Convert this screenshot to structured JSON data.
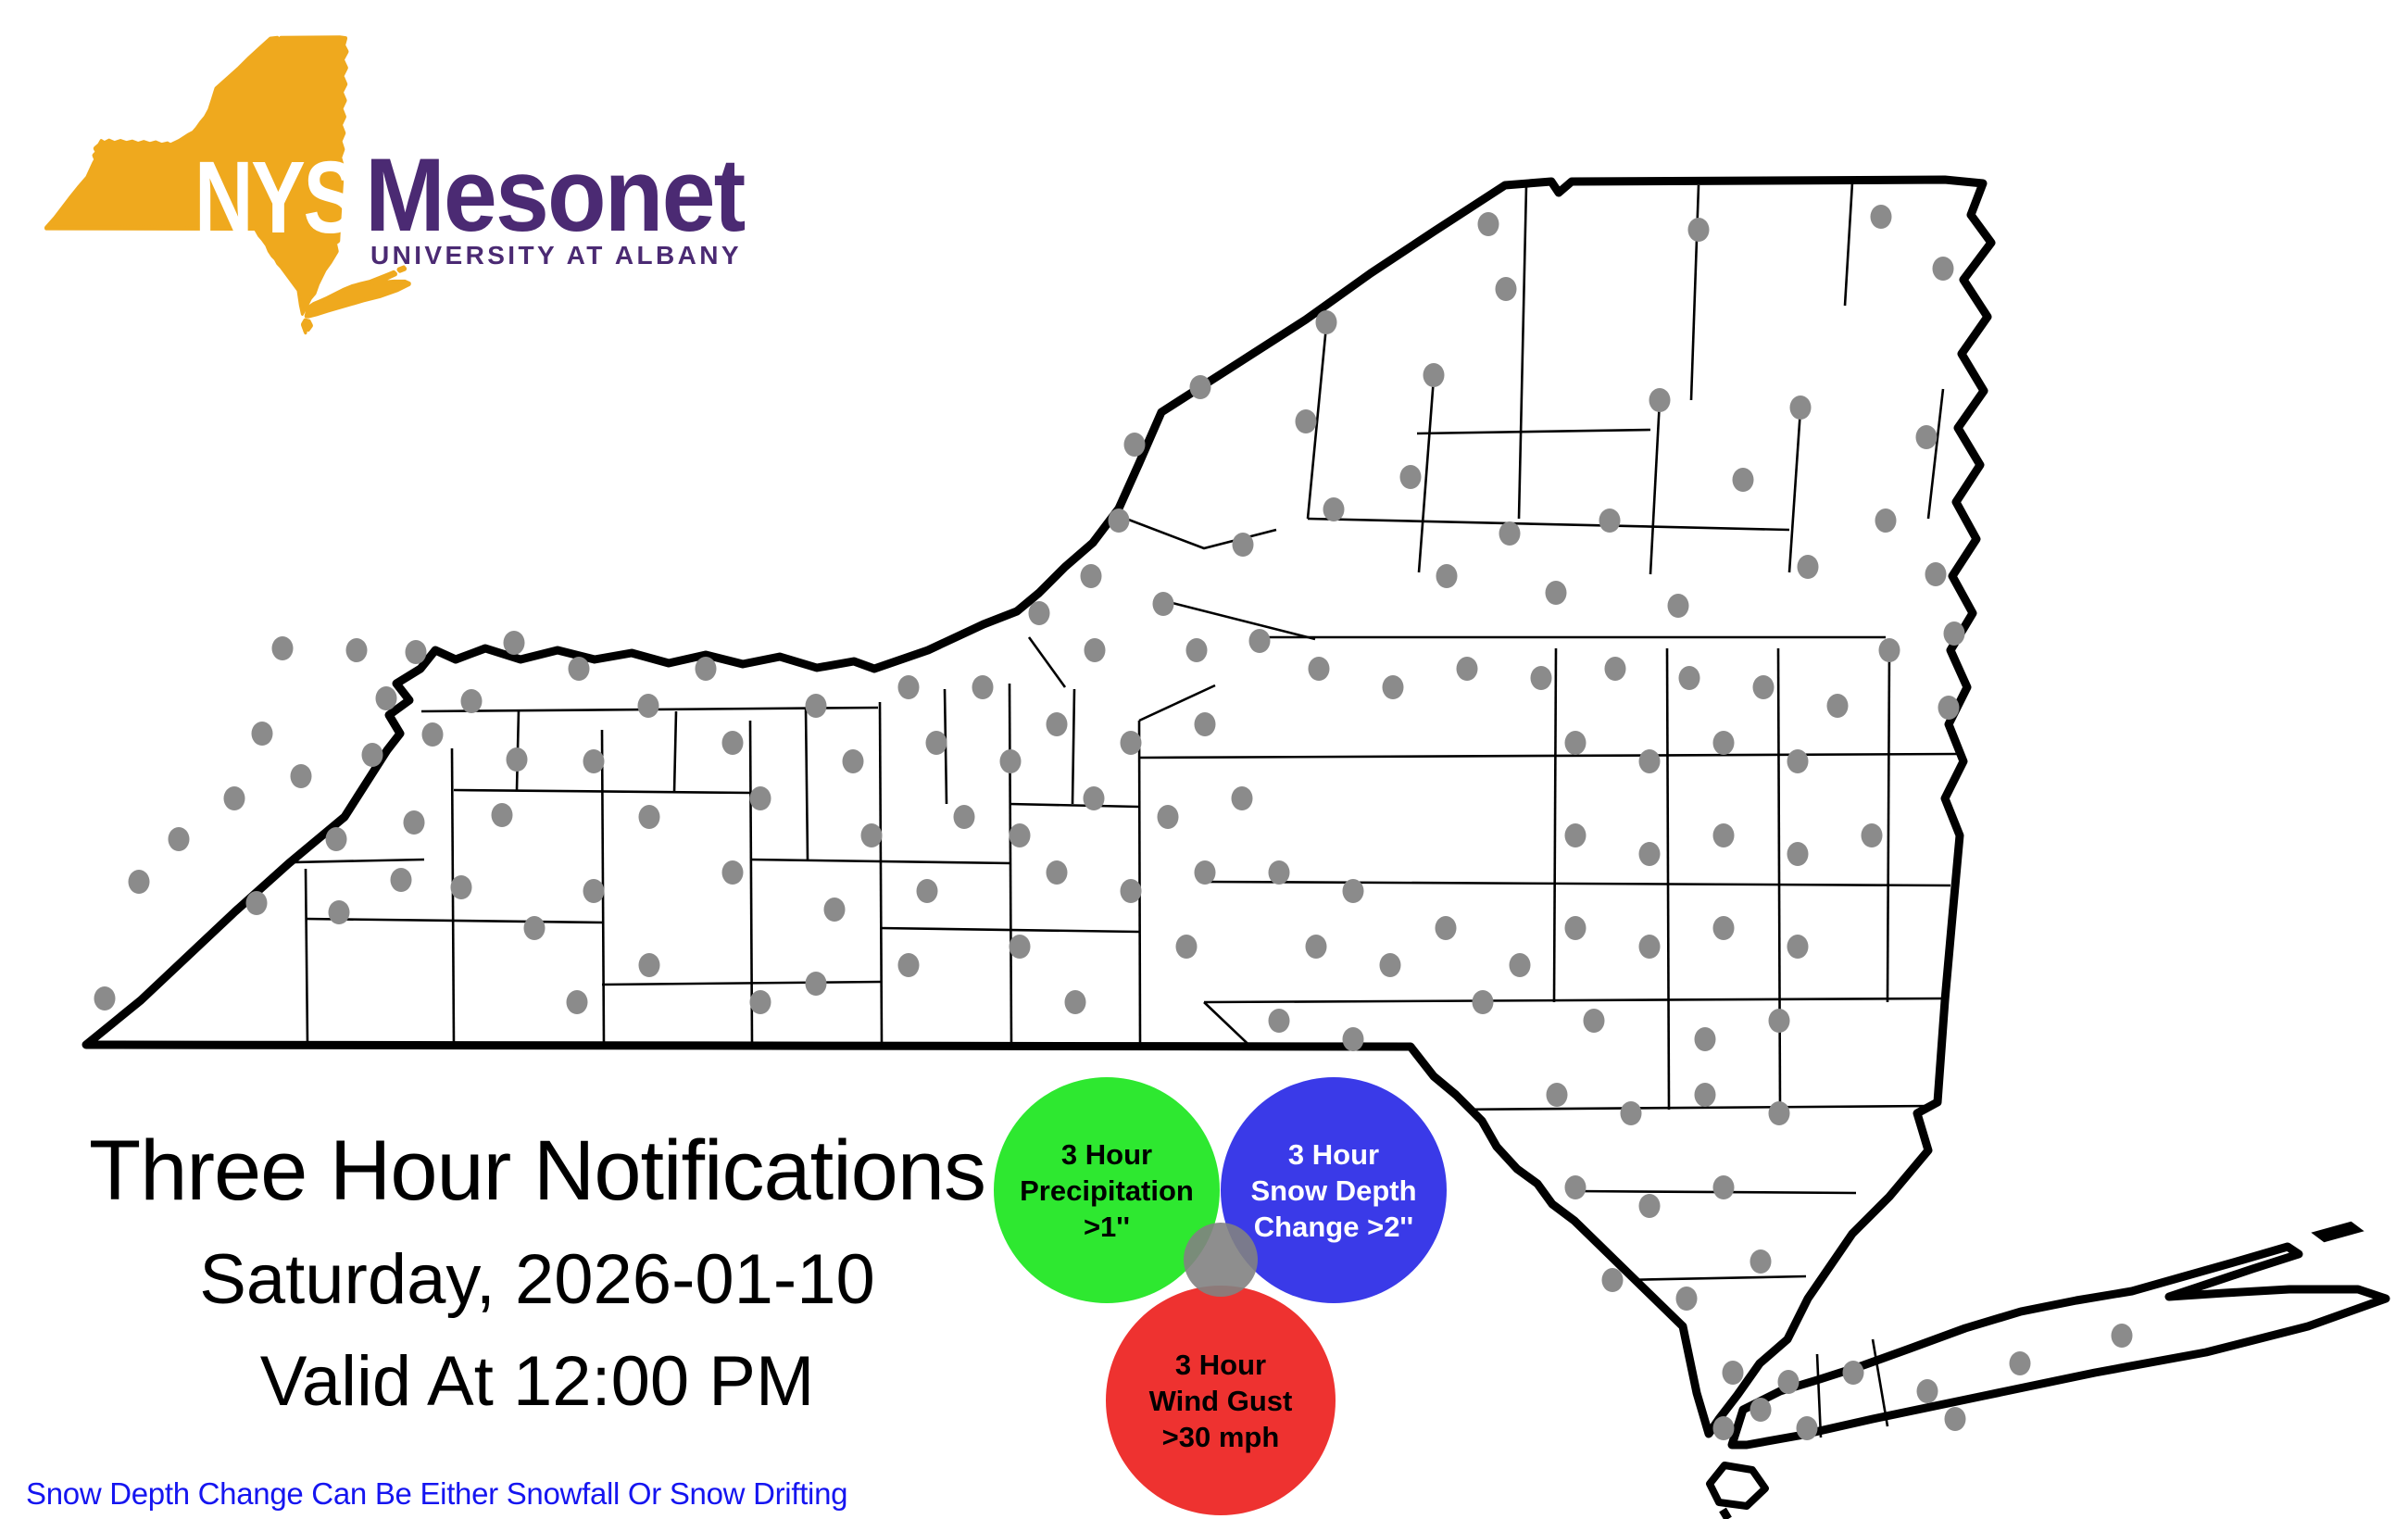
{
  "logo": {
    "nys": "NYS",
    "mesonet": "Mesonet",
    "university": "UNIVERSITY AT ALBANY",
    "state_color": "#efa91e",
    "purple": "#4b2a73"
  },
  "title": {
    "line1": "Three Hour Notifications",
    "line2": "Saturday, 2026-01-10",
    "line3": "Valid At 12:00 PM"
  },
  "footnote": {
    "text": "Snow Depth Change Can Be Either Snowfall Or Snow Drifting",
    "color": "#1515f0"
  },
  "legend": {
    "precipitation": {
      "line1": "3 Hour",
      "line2": "Precipitation",
      "line3": ">1''",
      "color": "#2ee830",
      "text_color": "#000000"
    },
    "snow_depth": {
      "line1": "3 Hour",
      "line2": "Snow Depth",
      "line3": "Change >2''",
      "color": "#3a3ae8",
      "text_color": "#ffffff"
    },
    "wind_gust": {
      "line1": "3 Hour",
      "line2": "Wind Gust",
      "line3": ">30 mph",
      "color": "#ee3230",
      "text_color": "#000000"
    },
    "all_three_dot_color": "#828282"
  },
  "map": {
    "station_dot_color": "#8b8b8b",
    "outline_color": "#000000",
    "stations": [
      [
        1607,
        242
      ],
      [
        1834,
        248
      ],
      [
        2031,
        234
      ],
      [
        2098,
        290
      ],
      [
        1626,
        312
      ],
      [
        1432,
        348
      ],
      [
        1548,
        405
      ],
      [
        1792,
        432
      ],
      [
        1944,
        440
      ],
      [
        1296,
        418
      ],
      [
        1225,
        480
      ],
      [
        1410,
        455
      ],
      [
        1523,
        515
      ],
      [
        1440,
        550
      ],
      [
        1630,
        576
      ],
      [
        1882,
        518
      ],
      [
        1738,
        562
      ],
      [
        2036,
        562
      ],
      [
        1342,
        588
      ],
      [
        1562,
        622
      ],
      [
        1680,
        640
      ],
      [
        1812,
        654
      ],
      [
        1952,
        612
      ],
      [
        2080,
        472
      ],
      [
        2090,
        620
      ],
      [
        2110,
        684
      ],
      [
        2040,
        702
      ],
      [
        2104,
        764
      ],
      [
        1208,
        562
      ],
      [
        1178,
        622
      ],
      [
        1122,
        662
      ],
      [
        1256,
        652
      ],
      [
        1182,
        702
      ],
      [
        1292,
        702
      ],
      [
        1360,
        692
      ],
      [
        1424,
        722
      ],
      [
        1504,
        742
      ],
      [
        1584,
        722
      ],
      [
        1664,
        732
      ],
      [
        1744,
        722
      ],
      [
        1824,
        732
      ],
      [
        1904,
        742
      ],
      [
        1984,
        762
      ],
      [
        113,
        1078
      ],
      [
        150,
        952
      ],
      [
        193,
        906
      ],
      [
        253,
        862
      ],
      [
        283,
        792
      ],
      [
        305,
        700
      ],
      [
        325,
        838
      ],
      [
        366,
        985
      ],
      [
        363,
        906
      ],
      [
        385,
        702
      ],
      [
        402,
        815
      ],
      [
        417,
        754
      ],
      [
        433,
        950
      ],
      [
        449,
        704
      ],
      [
        447,
        888
      ],
      [
        467,
        793
      ],
      [
        498,
        958
      ],
      [
        509,
        757
      ],
      [
        542,
        880
      ],
      [
        555,
        694
      ],
      [
        558,
        820
      ],
      [
        577,
        1002
      ],
      [
        277,
        975
      ],
      [
        625,
        722
      ],
      [
        700,
        762
      ],
      [
        641,
        822
      ],
      [
        701,
        882
      ],
      [
        641,
        962
      ],
      [
        701,
        1042
      ],
      [
        623,
        1082
      ],
      [
        762,
        722
      ],
      [
        791,
        802
      ],
      [
        821,
        862
      ],
      [
        791,
        942
      ],
      [
        821,
        1082
      ],
      [
        881,
        762
      ],
      [
        921,
        822
      ],
      [
        941,
        902
      ],
      [
        901,
        982
      ],
      [
        881,
        1062
      ],
      [
        981,
        742
      ],
      [
        1011,
        802
      ],
      [
        1041,
        882
      ],
      [
        1001,
        962
      ],
      [
        981,
        1042
      ],
      [
        1061,
        742
      ],
      [
        1091,
        822
      ],
      [
        1101,
        902
      ],
      [
        1141,
        782
      ],
      [
        1181,
        862
      ],
      [
        1141,
        942
      ],
      [
        1101,
        1022
      ],
      [
        1161,
        1082
      ],
      [
        1221,
        802
      ],
      [
        1261,
        882
      ],
      [
        1221,
        962
      ],
      [
        1281,
        1022
      ],
      [
        1301,
        942
      ],
      [
        1341,
        862
      ],
      [
        1301,
        782
      ],
      [
        1381,
        942
      ],
      [
        1421,
        1022
      ],
      [
        1381,
        1102
      ],
      [
        1461,
        962
      ],
      [
        1501,
        1042
      ],
      [
        1461,
        1122
      ],
      [
        1561,
        1002
      ],
      [
        1601,
        1082
      ],
      [
        1641,
        1042
      ],
      [
        1701,
        802
      ],
      [
        1781,
        822
      ],
      [
        1861,
        802
      ],
      [
        1941,
        822
      ],
      [
        2021,
        902
      ],
      [
        1701,
        902
      ],
      [
        1781,
        922
      ],
      [
        1861,
        902
      ],
      [
        1941,
        922
      ],
      [
        1701,
        1002
      ],
      [
        1781,
        1022
      ],
      [
        1861,
        1002
      ],
      [
        1941,
        1022
      ],
      [
        1721,
        1102
      ],
      [
        1841,
        1122
      ],
      [
        1921,
        1102
      ],
      [
        1681,
        1182
      ],
      [
        1761,
        1202
      ],
      [
        1841,
        1182
      ],
      [
        1921,
        1202
      ],
      [
        1701,
        1282
      ],
      [
        1781,
        1302
      ],
      [
        1861,
        1282
      ],
      [
        1741,
        1382
      ],
      [
        1821,
        1402
      ],
      [
        1901,
        1362
      ],
      [
        1871,
        1482
      ],
      [
        1901,
        1522
      ],
      [
        1931,
        1492
      ],
      [
        1861,
        1542
      ],
      [
        1951,
        1542
      ],
      [
        2001,
        1482
      ],
      [
        2081,
        1502
      ],
      [
        2181,
        1472
      ],
      [
        2291,
        1442
      ],
      [
        2111,
        1532
      ]
    ]
  }
}
